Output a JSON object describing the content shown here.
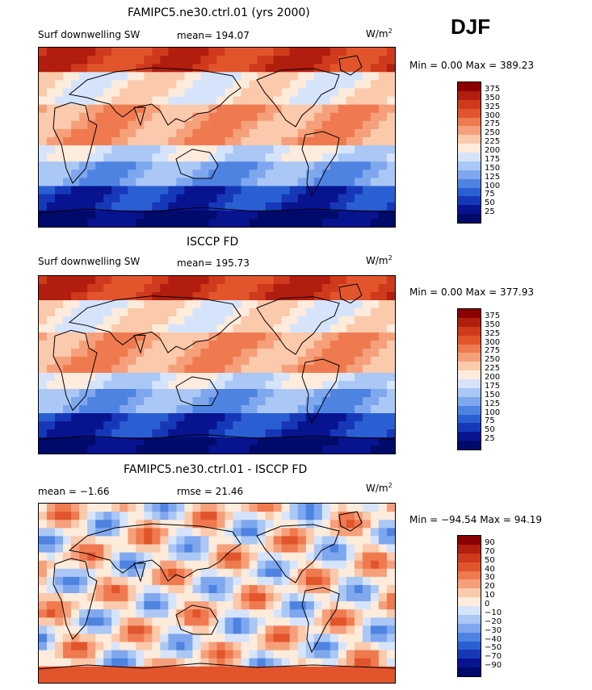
{
  "season": "DJF",
  "units_base": "W/m",
  "units_exp": "2",
  "panels": [
    {
      "title": "FAMIPC5.ne30.ctrl.01 (yrs 2000)",
      "left_label": "Surf downwelling SW",
      "stat_label": "mean= 194.07",
      "minmax": "Min =    0.00 Max = 389.23",
      "levels": [
        "375",
        "350",
        "325",
        "300",
        "275",
        "250",
        "225",
        "200",
        "175",
        "150",
        "125",
        "100",
        "75",
        "50",
        "25"
      ]
    },
    {
      "title": "ISCCP FD",
      "left_label": "Surf downwelling SW",
      "stat_label": "mean= 195.73",
      "minmax": "Min =    0.00 Max = 377.93",
      "levels": [
        "375",
        "350",
        "325",
        "300",
        "275",
        "250",
        "225",
        "200",
        "175",
        "150",
        "125",
        "100",
        "75",
        "50",
        "25"
      ]
    },
    {
      "title": "FAMIPC5.ne30.ctrl.01 - ISCCP FD",
      "left_label": "mean =   −1.66",
      "stat_label": "rmse =  21.46",
      "minmax": "Min = −94.54 Max =  94.19",
      "levels": [
        "90",
        "70",
        "50",
        "40",
        "30",
        "20",
        "10",
        "0",
        "−10",
        "−20",
        "−30",
        "−40",
        "−50",
        "−70",
        "−90"
      ]
    }
  ],
  "colors": {
    "scale": [
      "#8b0000",
      "#b11d0e",
      "#cf3a1c",
      "#e2552c",
      "#ef7a50",
      "#f6a07b",
      "#fbc9ab",
      "#fdebdc",
      "#d6e4fb",
      "#aac7f5",
      "#7ea7ee",
      "#4f83e2",
      "#2a5fd3",
      "#1638b8",
      "#08138f",
      "#000a6b"
    ],
    "coast": "#000000"
  }
}
